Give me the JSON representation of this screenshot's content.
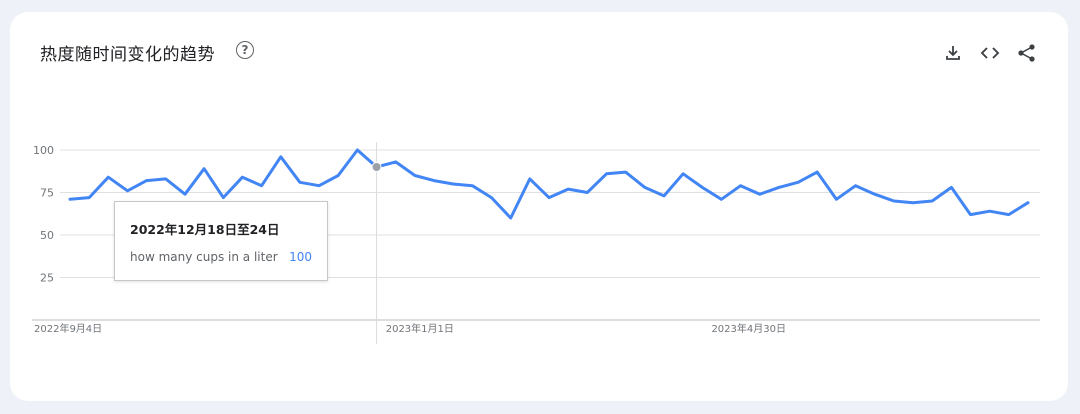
{
  "header": {
    "title": "热度随时间变化的趋势",
    "help_icon": "help-circle-icon",
    "actions": [
      {
        "name": "download-icon"
      },
      {
        "name": "embed-code-icon"
      },
      {
        "name": "share-icon"
      }
    ]
  },
  "tooltip": {
    "date": "2022年12月18日至24日",
    "term": "how many cups in a liter",
    "value": "100"
  },
  "colors": {
    "line": "#4285f4",
    "grid": "#e0e0e0",
    "axis_text": "#70757a",
    "value_text": "#4285f4"
  },
  "chart_data": {
    "type": "line",
    "title": "热度随时间变化的趋势",
    "ylim": [
      0,
      100
    ],
    "yticks": [
      25,
      50,
      75,
      100
    ],
    "x_tick_labels": [
      {
        "label": "2022年9月4日",
        "index": 0
      },
      {
        "label": "2023年1月1日",
        "index": 17
      },
      {
        "label": "2023年4月30日",
        "index": 34
      }
    ],
    "grid": true,
    "highlight_index": 16,
    "series": [
      {
        "name": "how many cups in a liter",
        "values": [
          71,
          72,
          84,
          76,
          82,
          83,
          74,
          89,
          72,
          84,
          79,
          96,
          81,
          79,
          85,
          100,
          90,
          93,
          85,
          82,
          80,
          79,
          72,
          60,
          83,
          72,
          77,
          75,
          86,
          87,
          78,
          73,
          86,
          78,
          71,
          79,
          74,
          78,
          81,
          87,
          71,
          79,
          74,
          70,
          69,
          70,
          78,
          62,
          64,
          62,
          69
        ]
      }
    ]
  }
}
